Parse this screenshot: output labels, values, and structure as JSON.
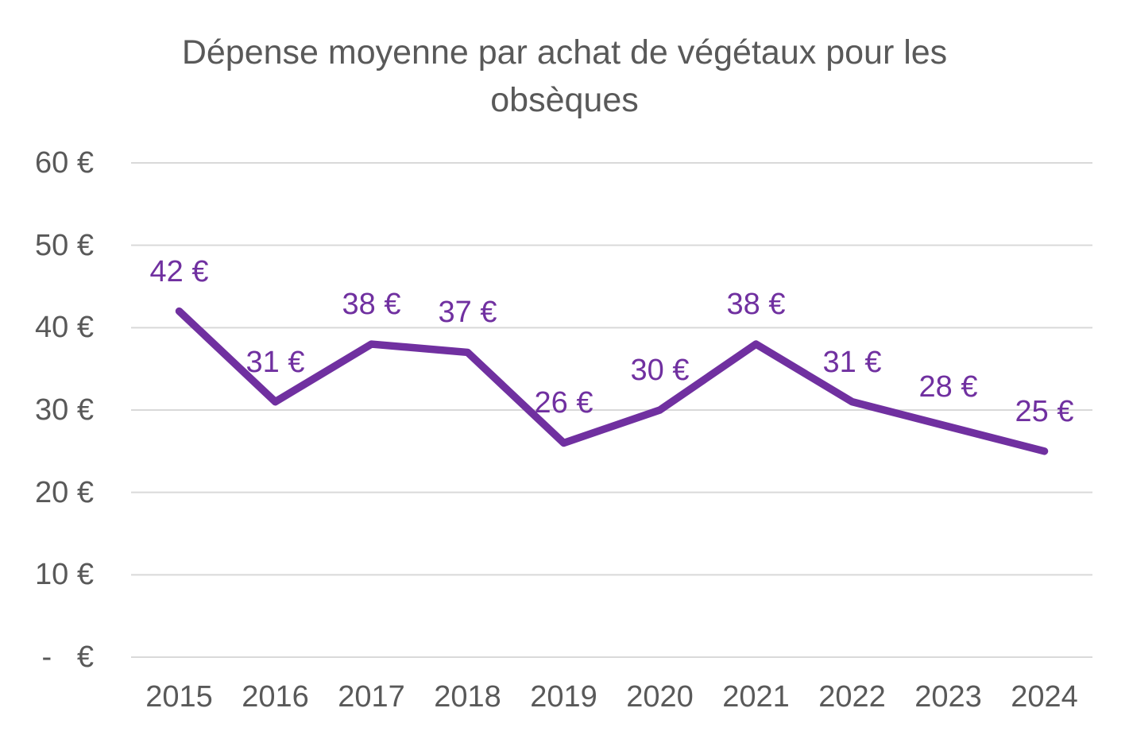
{
  "chart_data": {
    "type": "line",
    "title": "Dépense moyenne par achat de végétaux pour les obsèques",
    "title_lines": [
      "Dépense moyenne par achat de végétaux pour les",
      "obsèques"
    ],
    "categories": [
      "2015",
      "2016",
      "2017",
      "2018",
      "2019",
      "2020",
      "2021",
      "2022",
      "2023",
      "2024"
    ],
    "values": [
      42,
      31,
      38,
      37,
      26,
      30,
      38,
      31,
      28,
      25
    ],
    "point_labels": [
      "42 €",
      "31 €",
      "38 €",
      "37 €",
      "26 €",
      "30 €",
      "38 €",
      "31 €",
      "28 €",
      "25 €"
    ],
    "y_axis": {
      "ylim": [
        0,
        60
      ],
      "ticks": [
        {
          "value": 60,
          "label": "60 €"
        },
        {
          "value": 50,
          "label": "50 €"
        },
        {
          "value": 40,
          "label": "40 €"
        },
        {
          "value": 30,
          "label": "30 €"
        },
        {
          "value": 20,
          "label": "20 €"
        },
        {
          "value": 10,
          "label": "10 €"
        },
        {
          "value": 0,
          "label": "-   €"
        }
      ]
    },
    "grid": true,
    "legend": false,
    "colors": {
      "line": "#7030A0",
      "data_label": "#7030A0",
      "axis_text": "#595959",
      "title_text": "#595959",
      "gridline": "#D9D9D9",
      "background": "#FFFFFF"
    }
  }
}
